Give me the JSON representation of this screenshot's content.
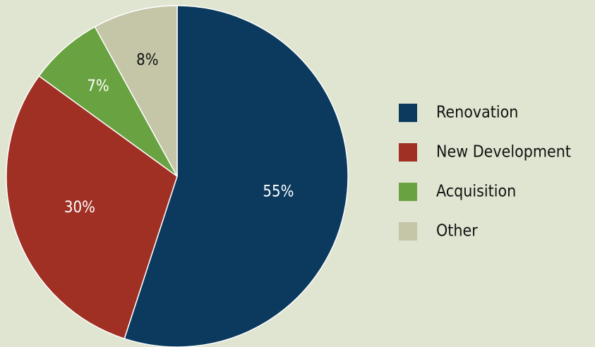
{
  "chart_data": {
    "type": "pie",
    "categories": [
      "Renovation",
      "New Development",
      "Acquisition",
      "Other"
    ],
    "values": [
      55,
      30,
      7,
      8
    ],
    "value_labels": [
      "55%",
      "30%",
      "7%",
      "8%"
    ],
    "colors": [
      "#0b3a5e",
      "#a03024",
      "#69a241",
      "#c5c5a8"
    ],
    "legend": "right"
  }
}
